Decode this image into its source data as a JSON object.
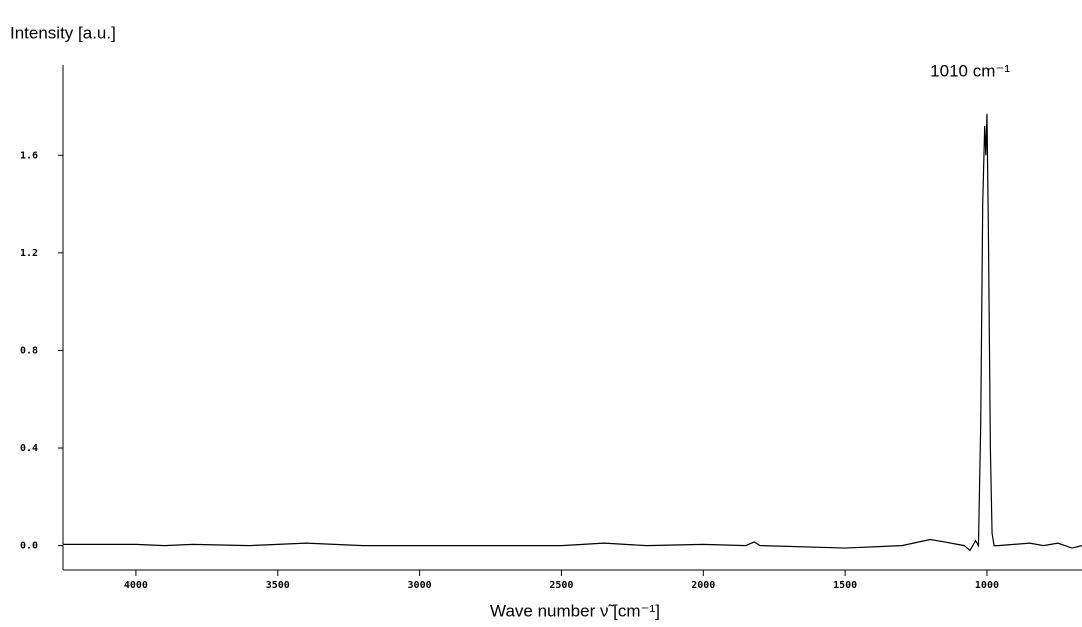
{
  "chart_data": {
    "type": "line",
    "ylabel": "Intensity [a.u.]",
    "xlabel": "Wave number ν̃ [cm⁻¹]",
    "annotation": "1010 cm⁻¹",
    "color": "#000000",
    "x": [
      4257,
      4000,
      3900,
      3800,
      3600,
      3500,
      3400,
      3300,
      3200,
      2800,
      2500,
      2350,
      2200,
      2000,
      1850,
      1820,
      1800,
      1500,
      1300,
      1200,
      1150,
      1080,
      1060,
      1040,
      1030,
      1022,
      1015,
      1008,
      1004,
      1000,
      995,
      988,
      982,
      975,
      960,
      850,
      800,
      750,
      700,
      665
    ],
    "values": [
      0.005,
      0.005,
      0.0,
      0.005,
      0.0,
      0.005,
      0.01,
      0.005,
      0.0,
      0.0,
      0.0,
      0.01,
      0.0,
      0.005,
      0.0,
      0.015,
      0.0,
      -0.01,
      0.0,
      0.025,
      0.015,
      0.0,
      -0.02,
      0.02,
      0.0,
      0.5,
      1.4,
      1.72,
      1.6,
      1.77,
      1.3,
      0.4,
      0.05,
      0.0,
      0.0,
      0.01,
      0.0,
      0.01,
      -0.01,
      0.0
    ],
    "xlim": [
      4257,
      665
    ],
    "ylim": [
      -0.1,
      1.97
    ],
    "xticks": [
      4000,
      3500,
      3000,
      2500,
      2000,
      1500,
      1000
    ],
    "yticks": [
      {
        "value": 0,
        "label": "0.0"
      },
      0.4,
      0.8,
      1.2,
      1.6
    ]
  }
}
